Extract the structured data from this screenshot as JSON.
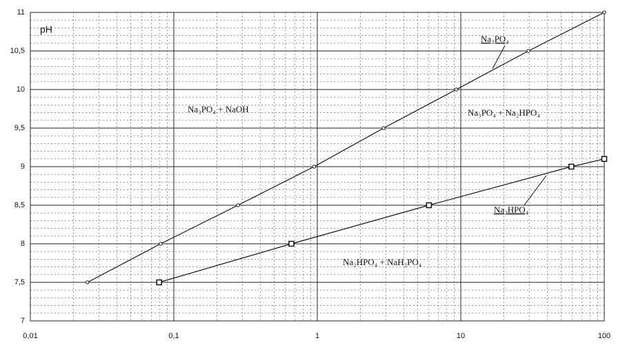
{
  "chart_data": {
    "type": "line",
    "y_label": "pH",
    "xscale": "log",
    "xlim": [
      0.01,
      100
    ],
    "xticks": [
      {
        "value": 0.01,
        "label": "0,01"
      },
      {
        "value": 0.1,
        "label": "0,1"
      },
      1,
      10,
      100
    ],
    "ylim": [
      7,
      11
    ],
    "yticks": [
      7,
      {
        "value": 7.5,
        "label": "7,5"
      },
      8,
      {
        "value": 8.5,
        "label": "8,5"
      },
      9,
      {
        "value": 9.5,
        "label": "9,5"
      },
      10,
      {
        "value": 10.5,
        "label": "10,5"
      },
      11
    ],
    "grid": true,
    "minor_grid": true,
    "series": [
      {
        "name": "Na₃PO₄",
        "color": "#111111",
        "marker": "circle",
        "x": [
          0.025,
          0.081,
          0.28,
          0.95,
          2.9,
          9.3,
          29.6,
          100
        ],
        "values": [
          7.5,
          8.0,
          8.5,
          9.0,
          9.5,
          10.0,
          10.5,
          11.0
        ]
      },
      {
        "name": "Na₂HPO₄",
        "color": "#111111",
        "marker": "square",
        "x": [
          0.079,
          0.66,
          6.0,
          59,
          100
        ],
        "values": [
          7.5,
          8.0,
          8.5,
          9.0,
          9.1
        ]
      }
    ],
    "annotations": [
      "Na₃PO₄ + NaOH",
      "Na₃PO₄ + Na₂HPO₄",
      "Na₂HPO₄ + NaH₂PO₄"
    ]
  }
}
